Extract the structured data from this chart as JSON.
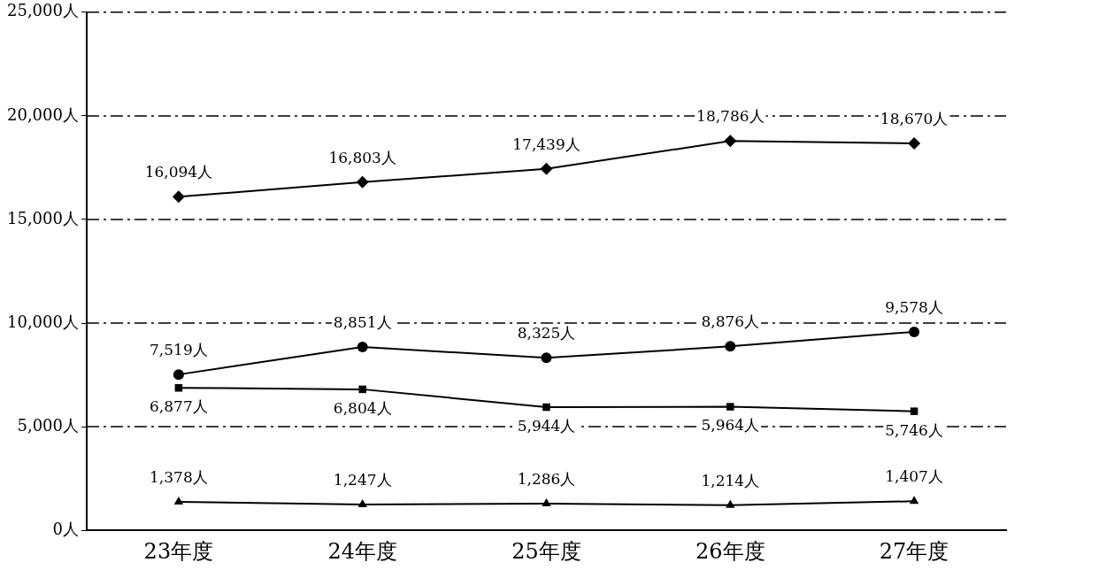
{
  "chart_data": {
    "type": "line",
    "categories": [
      "23年度",
      "24年度",
      "25年度",
      "26年度",
      "27年度"
    ],
    "series": [
      {
        "color": "#000000",
        "marker": "diamond",
        "values": [
          16094,
          16803,
          17439,
          18786,
          18670
        ],
        "value_labels": [
          "16,094人",
          "16,803人",
          "17,439人",
          "18,786人",
          "18,670人"
        ]
      },
      {
        "color": "#000000",
        "marker": "circle",
        "values": [
          7519,
          8851,
          8325,
          8876,
          9578
        ],
        "value_labels": [
          "7,519人",
          "8,851人",
          "8,325人",
          "8,876人",
          "9,578人"
        ]
      },
      {
        "color": "#000000",
        "marker": "square",
        "values": [
          6877,
          6804,
          5944,
          5964,
          5746
        ],
        "value_labels": [
          "6,877人",
          "6,804人",
          "5,944人",
          "5,964人",
          "5,746人"
        ]
      },
      {
        "color": "#000000",
        "marker": "triangle",
        "values": [
          1378,
          1247,
          1286,
          1214,
          1407
        ],
        "value_labels": [
          "1,378人",
          "1,247人",
          "1,286人",
          "1,214人",
          "1,407人"
        ]
      }
    ],
    "ylim": [
      0,
      25000
    ],
    "yticks": [
      {
        "value": 0,
        "label": "0人"
      },
      {
        "value": 5000,
        "label": "5,000人"
      },
      {
        "value": 10000,
        "label": "10,000人"
      },
      {
        "value": 15000,
        "label": "15,000人"
      },
      {
        "value": 20000,
        "label": "20,000人"
      },
      {
        "value": 25000,
        "label": "25,000人"
      }
    ],
    "grid": "y",
    "legend": false,
    "line_style": "solid"
  }
}
